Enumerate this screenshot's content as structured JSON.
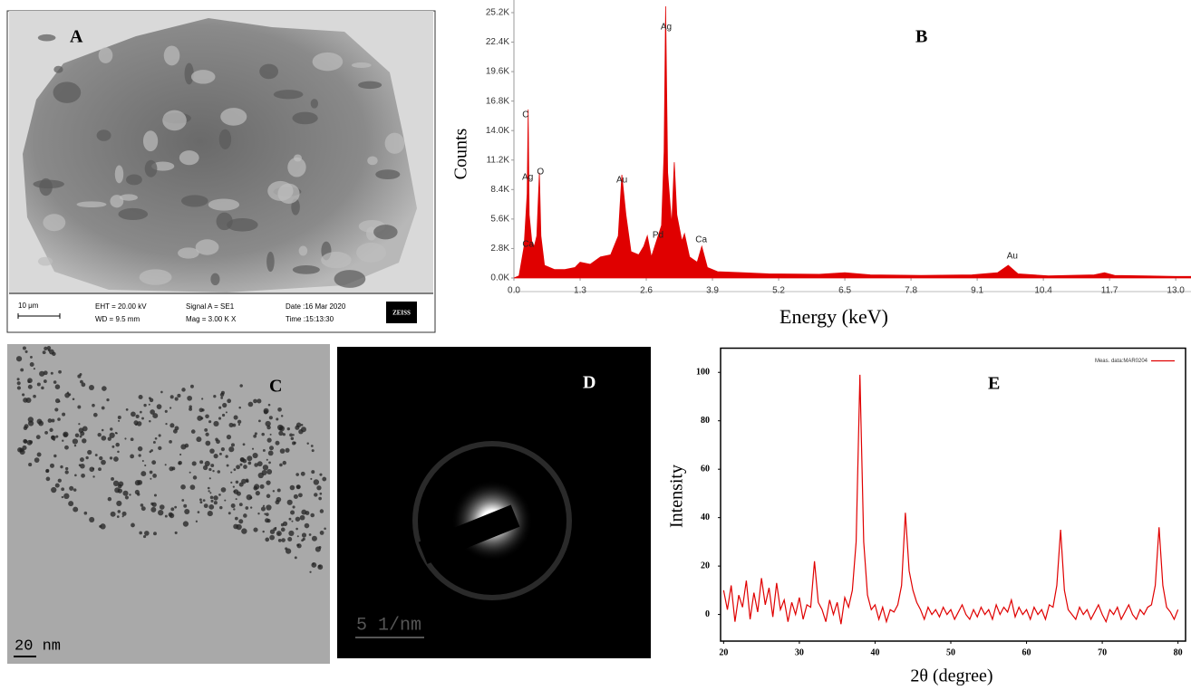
{
  "sem": {
    "label": "A",
    "scale_bar": "10 μm",
    "info": [
      "EHT = 20.00 kV",
      "WD = 9.5 mm",
      "Signal A = SE1",
      "Mag = 3.00 K X",
      "Date :16 Mar 2020",
      "Time :15:13:30"
    ],
    "logo": "ZEISS"
  },
  "tem": {
    "label": "C",
    "scale_bar": "20 nm"
  },
  "saed": {
    "label": "D",
    "scale_bar": "5 1/nm"
  },
  "chart_data": [
    {
      "type": "area",
      "label": "B",
      "xlabel": "Energy (keV)",
      "ylabel": "Counts",
      "color": "#e00000",
      "x": [
        0.0,
        0.1,
        0.2,
        0.26,
        0.28,
        0.3,
        0.35,
        0.4,
        0.45,
        0.5,
        0.53,
        0.6,
        0.8,
        1.0,
        1.2,
        1.3,
        1.5,
        1.7,
        1.9,
        2.05,
        2.12,
        2.2,
        2.3,
        2.45,
        2.55,
        2.62,
        2.7,
        2.8,
        2.9,
        2.95,
        2.98,
        3.02,
        3.1,
        3.15,
        3.2,
        3.3,
        3.35,
        3.45,
        3.6,
        3.69,
        3.8,
        4.0,
        4.5,
        5.0,
        6.0,
        6.5,
        7.0,
        8.0,
        9.0,
        9.5,
        9.71,
        9.9,
        10.5,
        11.4,
        11.6,
        11.8,
        13.0,
        13.3
      ],
      "values": [
        0,
        200,
        3000,
        8000,
        16000,
        6000,
        3500,
        3000,
        4000,
        10000,
        4000,
        1200,
        800,
        800,
        1000,
        1500,
        1300,
        2000,
        2200,
        4000,
        9800,
        6000,
        2500,
        2200,
        3000,
        4000,
        2000,
        3500,
        5000,
        12000,
        25800,
        10000,
        5000,
        11000,
        6000,
        3500,
        4200,
        2000,
        1500,
        3000,
        1000,
        600,
        500,
        400,
        350,
        500,
        300,
        250,
        300,
        500,
        1200,
        400,
        200,
        300,
        500,
        250,
        150,
        150
      ],
      "annotations": [
        {
          "text": "C",
          "x": 0.23,
          "y": 15480
        },
        {
          "text": "Ag",
          "x": 0.27,
          "y": 9540
        },
        {
          "text": "O",
          "x": 0.52,
          "y": 10060
        },
        {
          "text": "Ca",
          "x": 0.28,
          "y": 3180
        },
        {
          "text": "Au",
          "x": 2.12,
          "y": 9290
        },
        {
          "text": "Ag",
          "x": 2.99,
          "y": 23820
        },
        {
          "text": "Pd",
          "x": 2.83,
          "y": 4040
        },
        {
          "text": "Ca",
          "x": 3.68,
          "y": 3610
        },
        {
          "text": "Au",
          "x": 9.79,
          "y": 2060
        }
      ],
      "xlim": [
        0,
        13.3
      ],
      "ylim": [
        0,
        26400
      ],
      "xticks": [
        {
          "value": 0,
          "label": "0.0"
        },
        1.3,
        2.6,
        3.9,
        5.2,
        6.5,
        7.8,
        9.1,
        {
          "value": 10.4,
          "label": "10.4"
        },
        11.7,
        {
          "value": 13,
          "label": "13.0"
        }
      ],
      "yticks": [
        {
          "value": 0,
          "label": "0.0K"
        },
        {
          "value": 2800,
          "label": "2.8K"
        },
        {
          "value": 5600,
          "label": "5.6K"
        },
        {
          "value": 8400,
          "label": "8.4K"
        },
        {
          "value": 11200,
          "label": "11.2K"
        },
        {
          "value": 14000,
          "label": "14.0K"
        },
        {
          "value": 16800,
          "label": "16.8K"
        },
        {
          "value": 19600,
          "label": "19.6K"
        },
        {
          "value": 22400,
          "label": "22.4K"
        },
        {
          "value": 25200,
          "label": "25.2K"
        }
      ]
    },
    {
      "type": "line",
      "label": "E",
      "xlabel": "2θ (degree)",
      "ylabel": "Intensity",
      "legend": "upper right",
      "x": [
        20,
        20.5,
        21,
        21.5,
        22,
        22.5,
        23,
        23.5,
        24,
        24.5,
        25,
        25.5,
        26,
        26.5,
        27,
        27.5,
        28,
        28.5,
        29,
        29.5,
        30,
        30.5,
        31,
        31.5,
        32,
        32.5,
        33,
        33.5,
        34,
        34.5,
        35,
        35.5,
        36,
        36.5,
        37,
        37.5,
        38,
        38.5,
        39,
        39.5,
        40,
        40.5,
        41,
        41.5,
        42,
        42.5,
        43,
        43.5,
        44,
        44.5,
        45,
        45.5,
        46,
        46.5,
        47,
        47.5,
        48,
        48.5,
        49,
        49.5,
        50,
        50.5,
        51,
        51.5,
        52,
        52.5,
        53,
        53.5,
        54,
        54.5,
        55,
        55.5,
        56,
        56.5,
        57,
        57.5,
        58,
        58.5,
        59,
        59.5,
        60,
        60.5,
        61,
        61.5,
        62,
        62.5,
        63,
        63.5,
        64,
        64.5,
        65,
        65.5,
        66,
        66.5,
        67,
        67.5,
        68,
        68.5,
        69,
        69.5,
        70,
        70.5,
        71,
        71.5,
        72,
        72.5,
        73,
        73.5,
        74,
        74.5,
        75,
        75.5,
        76,
        76.5,
        77,
        77.5,
        78,
        78.5,
        79,
        79.5,
        80
      ],
      "series": [
        {
          "name": "Meas. data:MAR0204",
          "color": "#e00000",
          "values": [
            10,
            2,
            12,
            -3,
            8,
            3,
            14,
            -2,
            9,
            1,
            15,
            4,
            11,
            -1,
            13,
            2,
            6,
            -3,
            5,
            0,
            7,
            -2,
            4,
            3,
            22,
            5,
            2,
            -3,
            6,
            0,
            5,
            -4,
            7,
            3,
            10,
            30,
            99,
            30,
            8,
            2,
            4,
            -2,
            3,
            -3,
            2,
            1,
            4,
            12,
            42,
            18,
            10,
            5,
            2,
            -2,
            3,
            0,
            2,
            -1,
            3,
            0,
            2,
            -2,
            1,
            4,
            0,
            -2,
            2,
            -1,
            3,
            0,
            2,
            -2,
            4,
            0,
            3,
            1,
            6,
            -1,
            3,
            0,
            2,
            -2,
            3,
            0,
            2,
            -2,
            4,
            3,
            12,
            35,
            10,
            2,
            0,
            -2,
            3,
            0,
            2,
            -2,
            1,
            4,
            0,
            -3,
            2,
            0,
            3,
            -2,
            1,
            4,
            0,
            -2,
            2,
            0,
            3,
            4,
            12,
            36,
            12,
            3,
            1,
            -2,
            2
          ]
        }
      ],
      "xlim": [
        19.6,
        81
      ],
      "ylim": [
        -11,
        110
      ],
      "xticks": [
        20,
        30,
        40,
        50,
        60,
        70,
        80
      ],
      "yticks": [
        0,
        20,
        40,
        60,
        80,
        100
      ]
    }
  ]
}
